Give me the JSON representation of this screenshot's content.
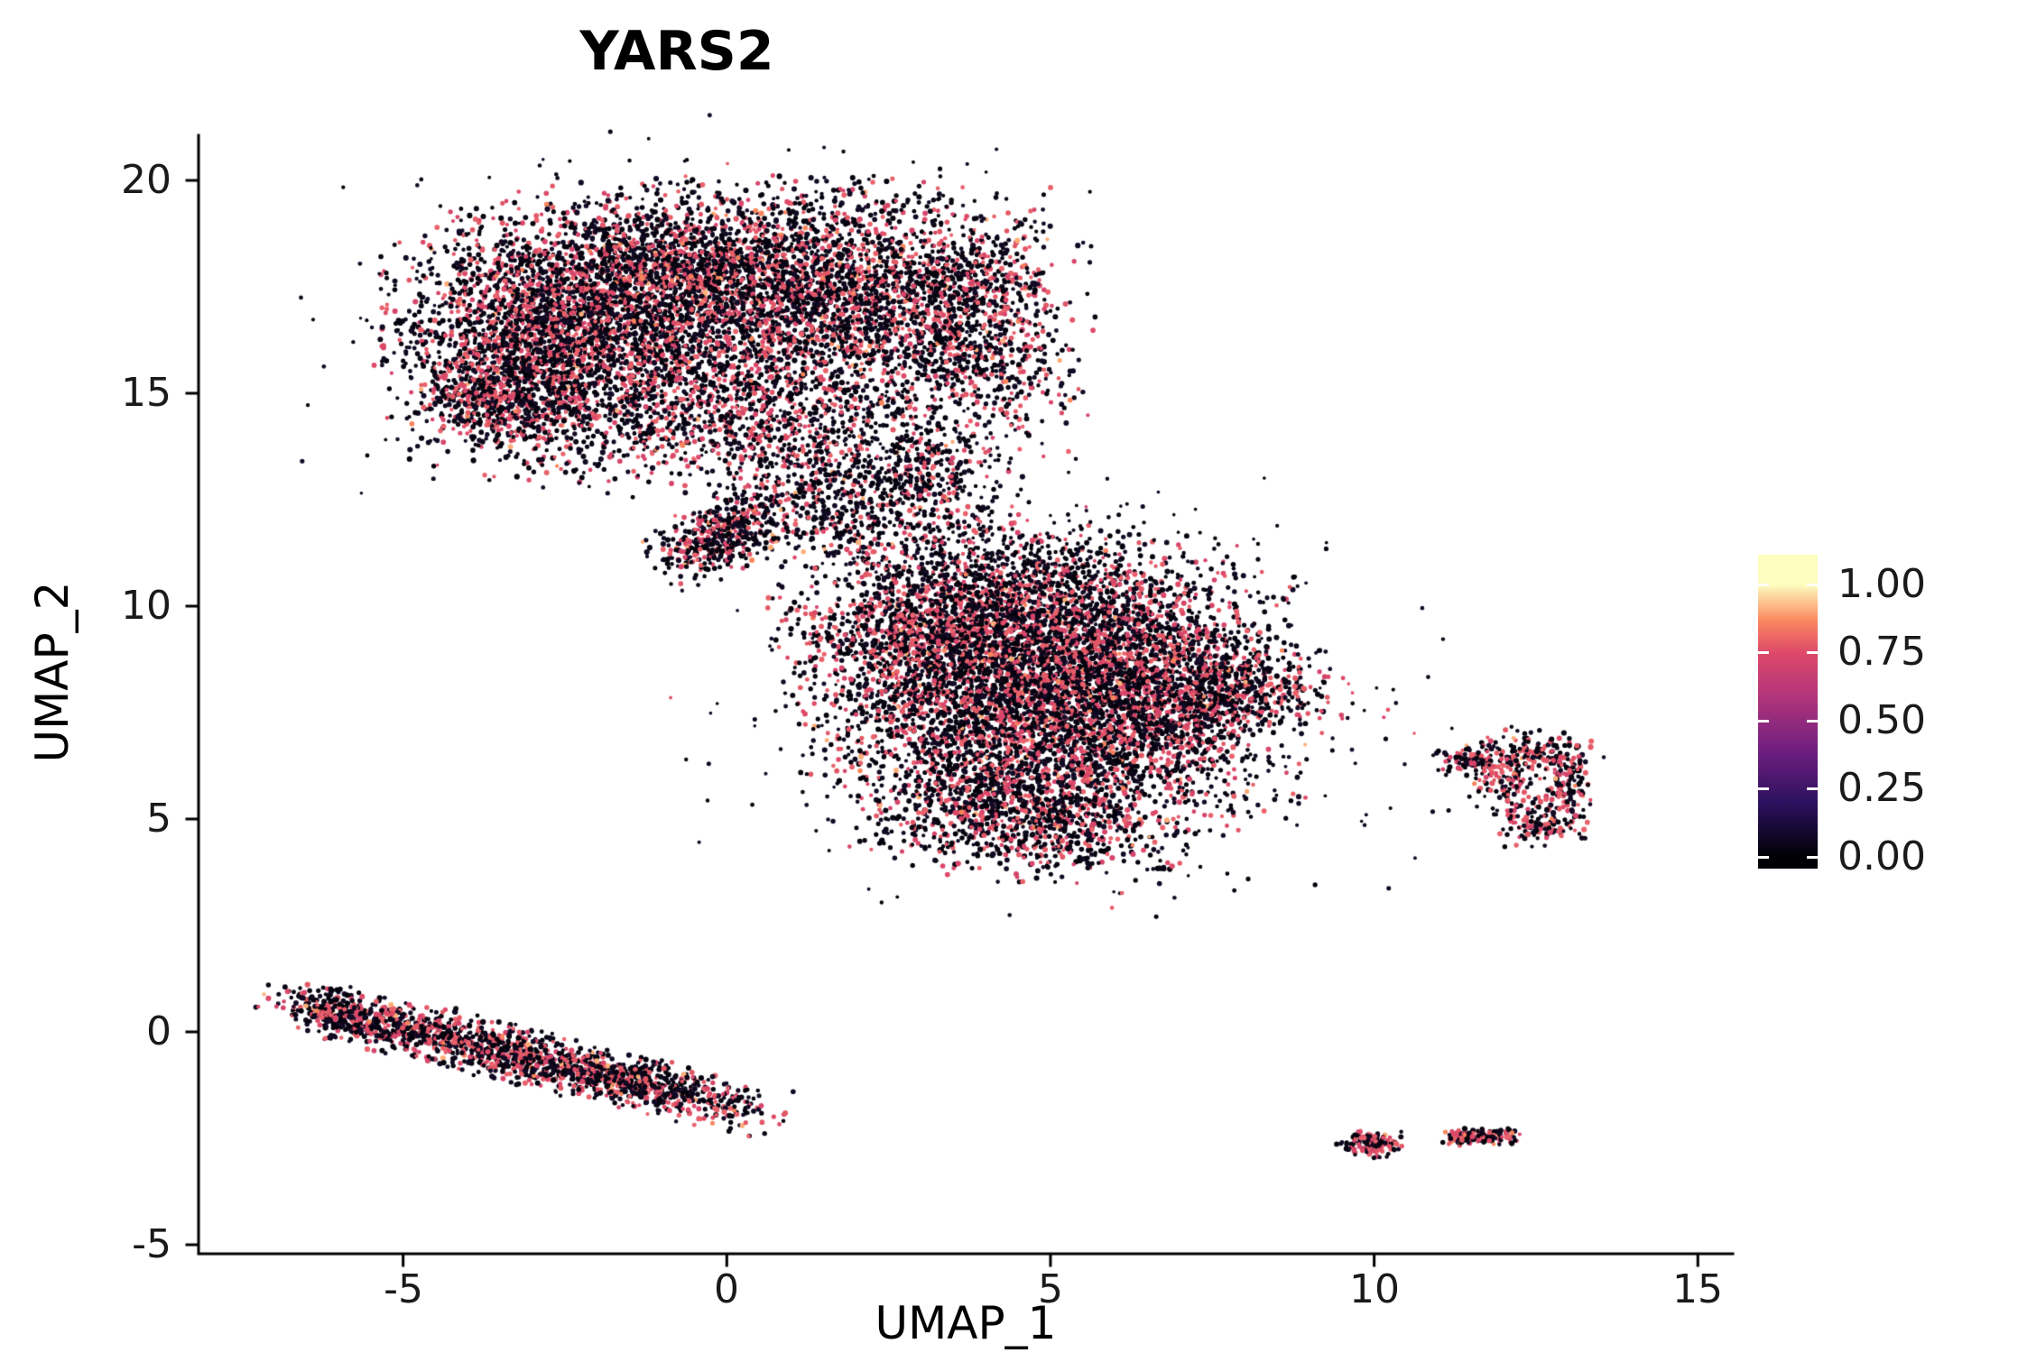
{
  "chart_data": {
    "type": "scatter",
    "title": "YARS2",
    "xlabel": "UMAP_1",
    "ylabel": "UMAP_2",
    "xlim": [
      -8.16,
      15.54
    ],
    "ylim": [
      -5.21,
      21.06
    ],
    "grid": false,
    "legend_position": "right",
    "axis_color": "#000000",
    "x_axis": {
      "ticks": [
        -5,
        0,
        5,
        10,
        15
      ],
      "tick_labels": [
        "-5",
        "0",
        "5",
        "10",
        "15"
      ]
    },
    "y_axis": {
      "ticks": [
        20,
        15,
        10,
        5,
        0,
        -5
      ],
      "tick_labels": [
        "20",
        "15",
        "10",
        "5",
        "0",
        "-5"
      ]
    },
    "colorbar": {
      "tick_labels": [
        "1.00",
        "0.75",
        "0.50",
        "0.25",
        "0.00"
      ],
      "tick_values": [
        1.0,
        0.75,
        0.5,
        0.25,
        0.0
      ],
      "gradient_stops": [
        {
          "pos": 0.0,
          "color": "#000004"
        },
        {
          "pos": 0.2,
          "color": "#2C115F"
        },
        {
          "pos": 0.4,
          "color": "#721F81"
        },
        {
          "pos": 0.6,
          "color": "#B5367A"
        },
        {
          "pos": 0.75,
          "color": "#DE4968"
        },
        {
          "pos": 0.87,
          "color": "#FC8961"
        },
        {
          "pos": 1.0,
          "color": "#FCFDBF"
        }
      ]
    },
    "point_style": {
      "radius": 2.6,
      "default_colored_frac": 0.36,
      "high_prob": 0.05,
      "colors_zero": [
        "#0A0613",
        "#03020C",
        "#120A24"
      ],
      "colors_mid": [
        "#DE4968",
        "#E25765",
        "#D6456B",
        "#E9616B"
      ],
      "colors_high": [
        "#F8855C",
        "#FDAE78"
      ]
    },
    "seed": 42,
    "clusters": [
      {
        "n": 2400,
        "cx": -2.8,
        "cy": 16.2,
        "sx": 1.15,
        "sy": 1.4
      },
      {
        "n": 2100,
        "cx": -0.8,
        "cy": 17.6,
        "sx": 1.4,
        "sy": 1.05
      },
      {
        "n": 1900,
        "cx": 1.6,
        "cy": 17.3,
        "sx": 1.4,
        "sy": 1.2
      },
      {
        "n": 1000,
        "cx": 3.7,
        "cy": 16.6,
        "sx": 0.85,
        "sy": 1.4
      },
      {
        "n": 800,
        "cx": 0.2,
        "cy": 14.6,
        "sx": 1.3,
        "sy": 0.8
      },
      {
        "n": 350,
        "cx": -3.6,
        "cy": 14.9,
        "sx": 0.6,
        "sy": 0.5
      },
      {
        "n": 450,
        "cx": -0.5,
        "cy": 16.6,
        "sx": 2.6,
        "sy": 2.1,
        "frac": 0.12,
        "r": 2.2
      },
      {
        "n": 420,
        "cx": -0.05,
        "cy": 11.7,
        "sx": 0.6,
        "sy": 0.35,
        "angle": 40
      },
      {
        "n": 420,
        "cx": 1.6,
        "cy": 12.4,
        "sx": 1.0,
        "sy": 0.7,
        "frac": 0.3
      },
      {
        "n": 300,
        "cx": 2.9,
        "cy": 12.9,
        "sx": 0.8,
        "sy": 0.6,
        "frac": 0.25
      },
      {
        "n": 220,
        "cx": 2.2,
        "cy": 13.8,
        "sx": 1.3,
        "sy": 0.6,
        "frac": 0.15,
        "r": 2.2
      },
      {
        "n": 1900,
        "cx": 3.5,
        "cy": 9.4,
        "sx": 1.25,
        "sy": 1.1
      },
      {
        "n": 2100,
        "cx": 5.6,
        "cy": 9.2,
        "sx": 1.4,
        "sy": 1.1
      },
      {
        "n": 2100,
        "cx": 4.4,
        "cy": 6.9,
        "sx": 1.4,
        "sy": 1.2
      },
      {
        "n": 1100,
        "cx": 6.6,
        "cy": 7.3,
        "sx": 1.0,
        "sy": 1.1
      },
      {
        "n": 400,
        "cx": 7.9,
        "cy": 8.1,
        "sx": 0.7,
        "sy": 0.5
      },
      {
        "n": 700,
        "cx": 4.7,
        "cy": 5.0,
        "sx": 1.1,
        "sy": 0.65
      },
      {
        "n": 300,
        "cx": 4.0,
        "cy": 11.0,
        "sx": 1.2,
        "sy": 0.6,
        "frac": 0.2,
        "r": 2.2
      },
      {
        "n": 420,
        "cx": 5.2,
        "cy": 8.0,
        "sx": 2.6,
        "sy": 2.3,
        "frac": 0.1,
        "r": 2.2
      },
      {
        "n": 8,
        "cx": 6.8,
        "cy": 3.85,
        "sx": 0.12,
        "sy": 0.1,
        "frac": 0.3
      },
      {
        "n": 150,
        "cx": -6.0,
        "cy": 0.4,
        "sx": 0.32,
        "sy": 0.26,
        "angle": -20
      },
      {
        "n": 500,
        "cx": -5.2,
        "cy": 0.15,
        "sx": 0.9,
        "sy": 0.28,
        "angle": -20
      },
      {
        "n": 650,
        "cx": -3.2,
        "cy": -0.55,
        "sx": 1.0,
        "sy": 0.3,
        "angle": -20
      },
      {
        "n": 600,
        "cx": -1.2,
        "cy": -1.25,
        "sx": 1.0,
        "sy": 0.28,
        "angle": -20
      },
      {
        "n": 130,
        "cx": 12.4,
        "cy": 6.6,
        "sx": 0.5,
        "sy": 0.22,
        "frac": 0.45
      },
      {
        "n": 120,
        "cx": 12.95,
        "cy": 5.8,
        "sx": 0.18,
        "sy": 0.5,
        "frac": 0.45
      },
      {
        "n": 100,
        "cx": 12.0,
        "cy": 5.9,
        "sx": 0.25,
        "sy": 0.38,
        "frac": 0.45
      },
      {
        "n": 120,
        "cx": 12.55,
        "cy": 4.9,
        "sx": 0.35,
        "sy": 0.25,
        "frac": 0.45
      },
      {
        "n": 70,
        "cx": 11.4,
        "cy": 6.35,
        "sx": 0.3,
        "sy": 0.18,
        "frac": 0.3
      },
      {
        "n": 40,
        "cx": 12.3,
        "cy": 5.8,
        "sx": 0.7,
        "sy": 0.6,
        "frac": 0.2,
        "r": 2.2
      },
      {
        "n": 140,
        "cx": 9.95,
        "cy": -2.62,
        "sx": 0.23,
        "sy": 0.15,
        "frac": 0.5
      },
      {
        "n": 60,
        "cx": 11.35,
        "cy": -2.5,
        "sx": 0.15,
        "sy": 0.1,
        "frac": 0.5
      },
      {
        "n": 90,
        "cx": 11.85,
        "cy": -2.45,
        "sx": 0.2,
        "sy": 0.1,
        "frac": 0.5
      }
    ]
  }
}
